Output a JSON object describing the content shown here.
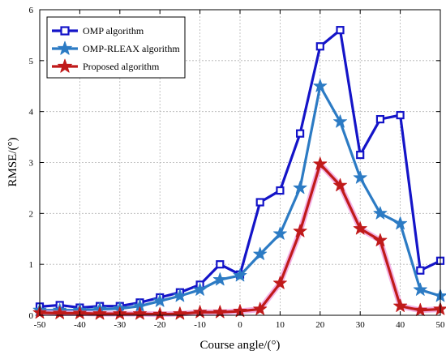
{
  "chart_data": {
    "type": "line",
    "title": "",
    "xlabel": "Course angle/(°)",
    "ylabel": "RMSE/(°)",
    "xlim": [
      -50,
      50
    ],
    "ylim": [
      0,
      6
    ],
    "xticks": [
      -50,
      -40,
      -30,
      -20,
      -10,
      0,
      10,
      20,
      30,
      40,
      50
    ],
    "yticks": [
      0,
      1,
      2,
      3,
      4,
      5,
      6
    ],
    "grid": true,
    "legend_position": "top-left",
    "x": [
      -50,
      -45,
      -40,
      -35,
      -30,
      -25,
      -20,
      -15,
      -10,
      -5,
      0,
      5,
      10,
      15,
      20,
      25,
      30,
      35,
      40,
      45,
      50
    ],
    "series": [
      {
        "name": "OMP algorithm",
        "color": "#1414c8",
        "marker": "square",
        "values": [
          0.17,
          0.2,
          0.15,
          0.18,
          0.18,
          0.25,
          0.35,
          0.45,
          0.6,
          1.0,
          0.8,
          2.22,
          2.45,
          3.57,
          5.28,
          5.6,
          3.15,
          3.85,
          3.93,
          0.88,
          1.07
        ]
      },
      {
        "name": "OMP-RLEAX algorithm",
        "color": "#2c7bc4",
        "marker": "star",
        "values": [
          0.1,
          0.1,
          0.1,
          0.12,
          0.13,
          0.18,
          0.28,
          0.38,
          0.5,
          0.7,
          0.78,
          1.2,
          1.6,
          2.5,
          4.5,
          3.8,
          2.7,
          2.0,
          1.8,
          0.5,
          0.38
        ]
      },
      {
        "name": "Proposed algorithm",
        "color": "#c01a1a",
        "marker": "star",
        "values": [
          0.05,
          0.04,
          0.04,
          0.03,
          0.03,
          0.03,
          0.02,
          0.03,
          0.06,
          0.06,
          0.08,
          0.12,
          0.63,
          1.65,
          2.97,
          2.55,
          1.7,
          1.47,
          0.18,
          0.1,
          0.12
        ]
      }
    ]
  }
}
